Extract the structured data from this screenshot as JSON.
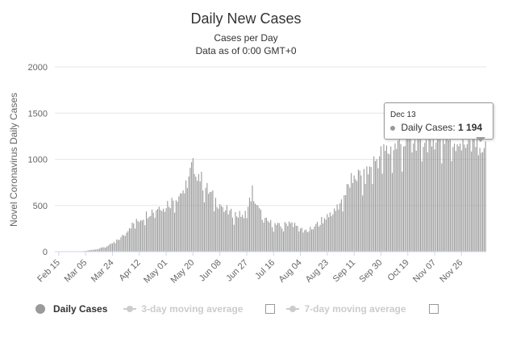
{
  "chart_data": {
    "type": "bar",
    "title": "Daily New Cases",
    "subtitle": "Cases per Day",
    "subtitle2": "Data as of 0:00 GMT+0",
    "xlabel": "",
    "ylabel": "Novel Coronavirus Daily Cases",
    "ylim": [
      0,
      2000
    ],
    "yticks": [
      0,
      500,
      1000,
      1500,
      2000
    ],
    "grid": true,
    "x_start": "2020-02-15",
    "x_end": "2020-12-13",
    "xtick_labels": [
      "Feb 15",
      "Mar 05",
      "Mar 24",
      "Apr 12",
      "May 01",
      "May 20",
      "Jun 08",
      "Jun 27",
      "Jul 16",
      "Aug 04",
      "Aug 23",
      "Sep 11",
      "Sep 30",
      "Oct 19",
      "Nov 07",
      "Nov 26"
    ],
    "anchors": [
      [
        "2020-02-15",
        0
      ],
      [
        "2020-02-28",
        2
      ],
      [
        "2020-03-05",
        8
      ],
      [
        "2020-03-15",
        35
      ],
      [
        "2020-03-22",
        70
      ],
      [
        "2020-03-30",
        150
      ],
      [
        "2020-04-05",
        270
      ],
      [
        "2020-04-12",
        350
      ],
      [
        "2020-04-20",
        440
      ],
      [
        "2020-04-27",
        500
      ],
      [
        "2020-05-04",
        540
      ],
      [
        "2020-05-11",
        640
      ],
      [
        "2020-05-15",
        720
      ],
      [
        "2020-05-20",
        960
      ],
      [
        "2020-05-24",
        850
      ],
      [
        "2020-05-28",
        720
      ],
      [
        "2020-06-03",
        600
      ],
      [
        "2020-06-08",
        520
      ],
      [
        "2020-06-15",
        420
      ],
      [
        "2020-06-22",
        400
      ],
      [
        "2020-06-27",
        420
      ],
      [
        "2020-07-01",
        670
      ],
      [
        "2020-07-05",
        470
      ],
      [
        "2020-07-10",
        340
      ],
      [
        "2020-07-16",
        300
      ],
      [
        "2020-07-22",
        270
      ],
      [
        "2020-07-28",
        340
      ],
      [
        "2020-08-04",
        240
      ],
      [
        "2020-08-10",
        230
      ],
      [
        "2020-08-16",
        300
      ],
      [
        "2020-08-23",
        400
      ],
      [
        "2020-08-30",
        480
      ],
      [
        "2020-09-05",
        640
      ],
      [
        "2020-09-11",
        850
      ],
      [
        "2020-09-18",
        800
      ],
      [
        "2020-09-25",
        980
      ],
      [
        "2020-09-30",
        1060
      ],
      [
        "2020-10-07",
        1120
      ],
      [
        "2020-10-14",
        1180
      ],
      [
        "2020-10-19",
        1220
      ],
      [
        "2020-10-26",
        1260
      ],
      [
        "2020-11-02",
        1240
      ],
      [
        "2020-11-07",
        1280
      ],
      [
        "2020-11-14",
        1250
      ],
      [
        "2020-11-21",
        1220
      ],
      [
        "2020-11-26",
        1230
      ],
      [
        "2020-12-03",
        1210
      ],
      [
        "2020-12-13",
        1194
      ]
    ],
    "series": [
      {
        "name": "Daily Cases",
        "color": "#999999"
      }
    ]
  },
  "legend": {
    "daily_cases": "Daily Cases",
    "ma3": "3-day moving average",
    "ma7": "7-day moving average"
  },
  "tooltip": {
    "date": "Dec 13",
    "label": "Daily Cases:",
    "value": "1 194"
  },
  "colors": {
    "bar": "#999999",
    "grid": "#e6e6e6",
    "text": "#333333",
    "axis": "#666666"
  }
}
